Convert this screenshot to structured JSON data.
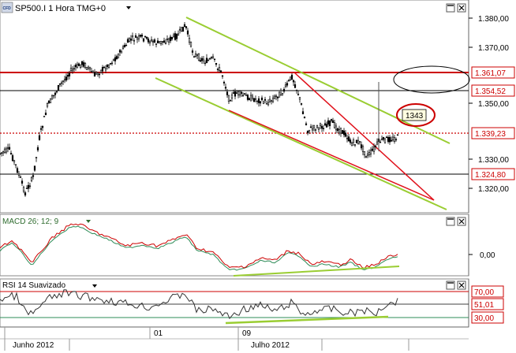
{
  "main_panel": {
    "instrument_badge": "CFD",
    "title": "SP500.I 1 Hora TMG+0",
    "title_dropdown_icon": "triangle-down",
    "window_buttons": [
      "maximize",
      "close"
    ],
    "y_axis_ticks": [
      "1.380,00",
      "1.370,00",
      "1.350,00",
      "1.330,00",
      "1.320,00"
    ],
    "price_labels": [
      {
        "text": "1.361,07",
        "color": "#cc0000",
        "style": "solid-red"
      },
      {
        "text": "1.354,52",
        "color": "#cc0000",
        "style": "solid-black"
      },
      {
        "text": "1.339,23",
        "color": "#cc0000",
        "style": "dotted-red"
      },
      {
        "text": "1.324,80",
        "color": "#cc0000",
        "style": "solid-black"
      }
    ],
    "annotation": "1343",
    "colors": {
      "candle": "#000000",
      "support_resistance": "#cc0000",
      "channel": "#9acd32",
      "wedge": "#e0101a",
      "ellipse_empty": "#000000"
    }
  },
  "macd_panel": {
    "title": "MACD 26; 12; 9",
    "dropdown_icon": "triangle-down",
    "window_buttons": [
      "maximize",
      "close"
    ],
    "y_axis_ticks": [
      "0,00"
    ],
    "colors": {
      "macd": "#cc0000",
      "signal": "#2e8b57",
      "divergence": "#9acd32"
    }
  },
  "rsi_panel": {
    "title": "RSI 14 Suavizado",
    "dropdown_icon": "triangle-down",
    "window_buttons": [
      "maximize",
      "close"
    ],
    "levels": [
      "70,00",
      "51,01",
      "30,00"
    ],
    "colors": {
      "upper": "#cc0000",
      "lower": "#2e8b57",
      "divergence": "#9acd32"
    }
  },
  "x_axis": {
    "ticks": [
      "01",
      "09"
    ],
    "month_labels": [
      "Junho 2012",
      "Julho 2012"
    ]
  }
}
